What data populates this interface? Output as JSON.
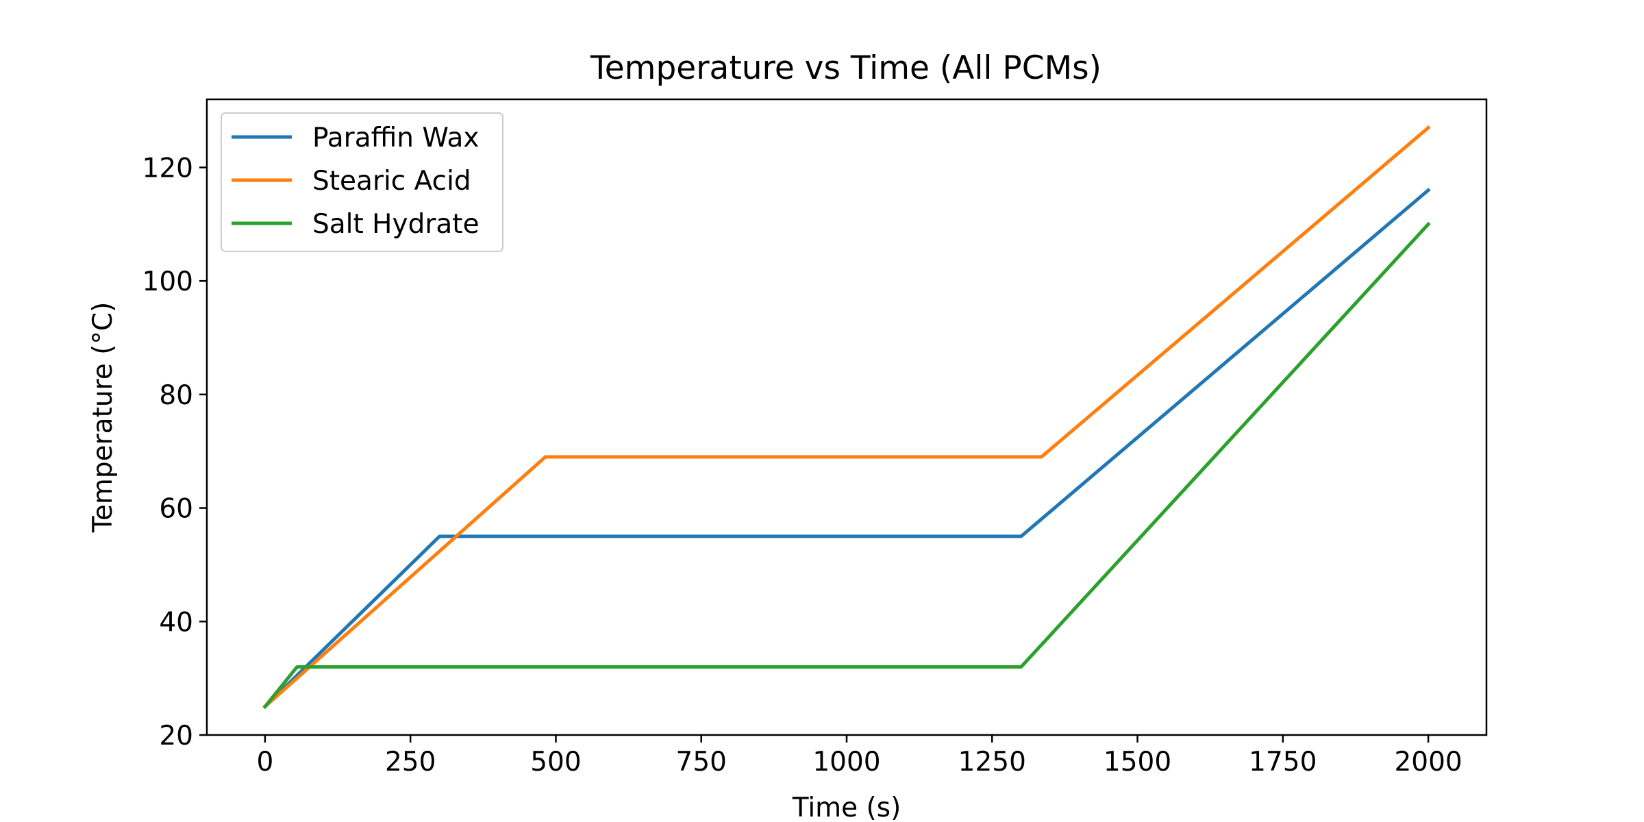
{
  "chart_data": {
    "type": "line",
    "title": "Temperature vs Time (All PCMs)",
    "xlabel": "Time (s)",
    "ylabel": "Temperature (°C)",
    "xlim": [
      -100,
      2100
    ],
    "ylim": [
      20,
      132
    ],
    "xticks": [
      0,
      250,
      500,
      750,
      1000,
      1250,
      1500,
      1750,
      2000
    ],
    "yticks": [
      20,
      40,
      60,
      80,
      100,
      120
    ],
    "grid": false,
    "legend_position": "upper-left",
    "series": [
      {
        "name": "Paraffin Wax",
        "color": "#1f77b4",
        "x": [
          0,
          300,
          1300,
          2000
        ],
        "y": [
          25,
          55,
          55,
          116
        ]
      },
      {
        "name": "Stearic Acid",
        "color": "#ff7f0e",
        "x": [
          0,
          482,
          1335,
          2000
        ],
        "y": [
          25,
          69,
          69,
          127
        ]
      },
      {
        "name": "Salt Hydrate",
        "color": "#2ca02c",
        "x": [
          0,
          55,
          1300,
          2000
        ],
        "y": [
          25,
          32,
          32,
          110
        ]
      }
    ]
  }
}
